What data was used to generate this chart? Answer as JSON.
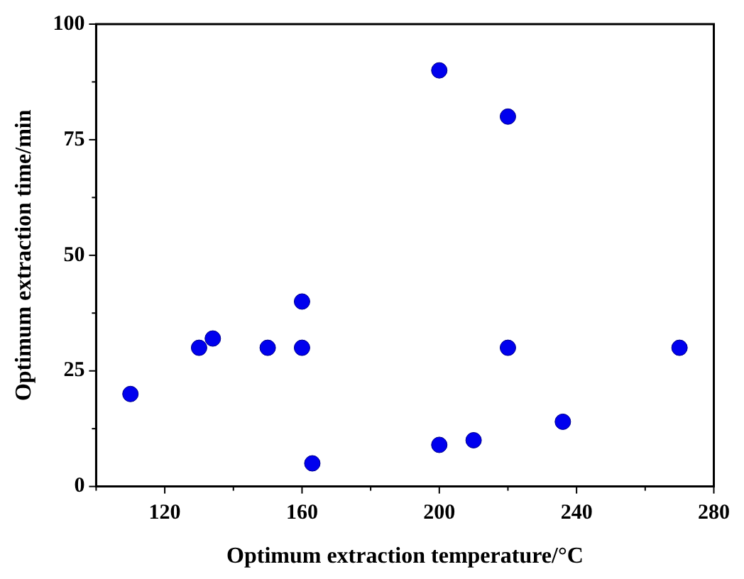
{
  "chart_data": {
    "type": "scatter",
    "xlabel": "Optimum extraction temperature/°C",
    "ylabel": "Optimum extraction time/min",
    "xlim": [
      100,
      280
    ],
    "xticks": [
      120,
      160,
      200,
      240,
      280
    ],
    "ylim": [
      0,
      100
    ],
    "yticks": [
      0,
      25,
      50,
      75,
      100
    ],
    "grid": false,
    "legend": false,
    "marker": "circle",
    "series": [
      {
        "color": "#0000ee",
        "x": [
          110,
          130,
          134,
          150,
          160,
          160,
          163,
          200,
          220,
          220,
          200,
          210,
          236,
          270
        ],
        "values": [
          20,
          30,
          32,
          30,
          40,
          30,
          5,
          90,
          80,
          30,
          9,
          10,
          14,
          30
        ]
      }
    ]
  }
}
